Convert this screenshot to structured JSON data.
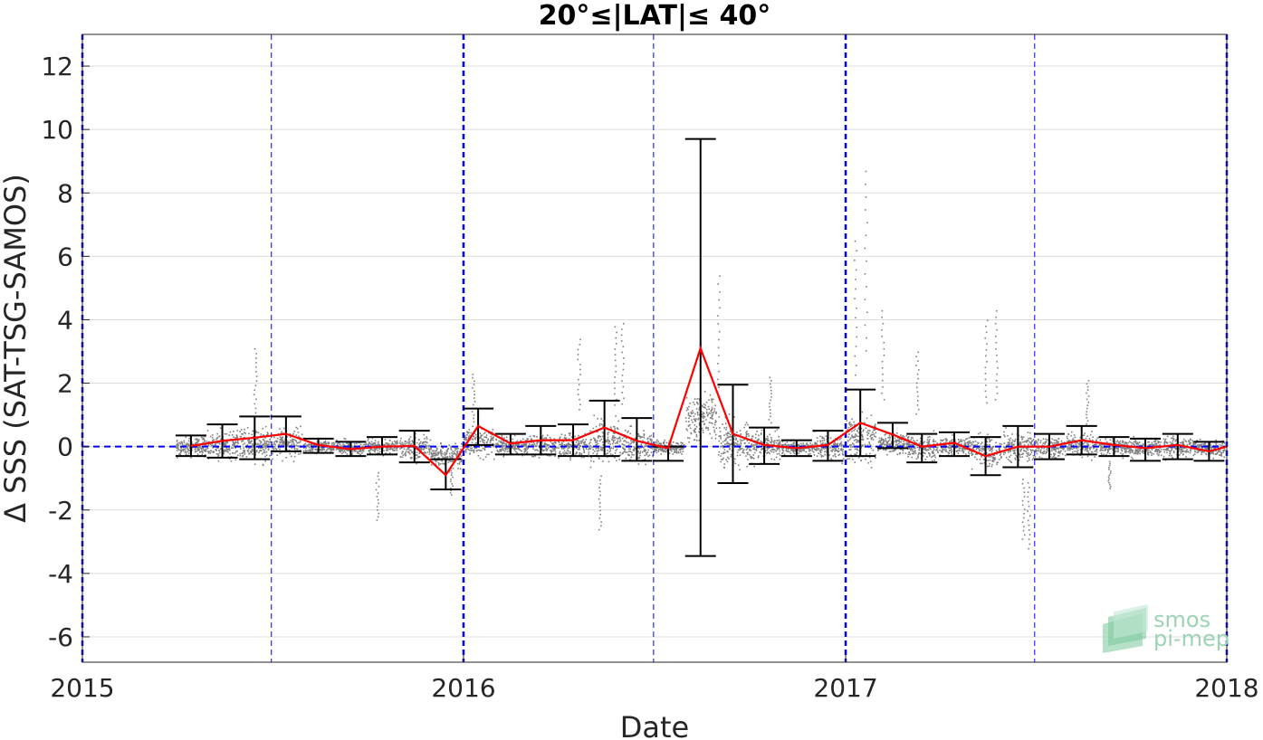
{
  "chart_data": {
    "type": "line",
    "title": "20°≤|LAT|≤ 40°",
    "xlabel": "Date",
    "ylabel": "Δ SSS (SAT-TSG-SAMOS)",
    "xlim": [
      "2015-01-01",
      "2018-01-01"
    ],
    "ylim": [
      -6.8,
      13
    ],
    "x_ticks": [
      "2015",
      "2016",
      "2017",
      "2018"
    ],
    "y_ticks": [
      -6,
      -4,
      -2,
      0,
      2,
      4,
      6,
      8,
      10,
      12
    ],
    "grid": true,
    "zero_line": 0,
    "year_lines": [
      "2015-01-01",
      "2016-01-01",
      "2017-01-01",
      "2018-01-01"
    ],
    "half_year_lines": [
      "2015-07-01",
      "2016-07-01",
      "2017-07-01"
    ],
    "colors": {
      "mean_line": "#ff0000",
      "error_bars": "#000000",
      "raw_points": "#808080",
      "year_lines": "#0000ff",
      "zero_line": "#0000ff",
      "grid": "#dcdcdc"
    },
    "series": [
      {
        "type": "errorbar",
        "x": [
          "2015-04-15",
          "2015-05-15",
          "2015-06-15",
          "2015-07-15",
          "2015-08-15",
          "2015-09-15",
          "2015-10-15",
          "2015-11-15",
          "2015-12-15",
          "2016-01-15",
          "2016-02-15",
          "2016-03-15",
          "2016-04-15",
          "2016-05-15",
          "2016-06-15",
          "2016-07-15",
          "2016-08-15",
          "2016-09-15",
          "2016-10-15",
          "2016-11-15",
          "2016-12-15",
          "2017-01-15",
          "2017-02-15",
          "2017-03-15",
          "2017-04-15",
          "2017-05-15",
          "2017-06-15",
          "2017-07-15",
          "2017-08-15",
          "2017-09-15",
          "2017-10-15",
          "2017-11-15",
          "2017-12-15"
        ],
        "mean": [
          0.02,
          0.18,
          0.28,
          0.4,
          0.05,
          -0.08,
          0.0,
          0.02,
          -0.9,
          0.65,
          0.1,
          0.2,
          0.2,
          0.6,
          0.18,
          -0.05,
          3.1,
          0.4,
          0.05,
          -0.05,
          0.05,
          0.75,
          0.38,
          0.0,
          0.12,
          -0.3,
          0.0,
          0.0,
          0.2,
          0.05,
          -0.05,
          0.05,
          -0.15
        ],
        "lower": [
          -0.3,
          -0.35,
          -0.4,
          -0.15,
          -0.2,
          -0.3,
          -0.25,
          -0.5,
          -1.35,
          0.05,
          -0.25,
          -0.25,
          -0.3,
          -0.3,
          -0.45,
          -0.45,
          -3.45,
          -1.15,
          -0.55,
          -0.3,
          -0.45,
          -0.3,
          -0.05,
          -0.5,
          -0.3,
          -0.9,
          -0.65,
          -0.4,
          -0.25,
          -0.3,
          -0.45,
          -0.4,
          -0.45
        ],
        "upper": [
          0.35,
          0.7,
          0.95,
          0.95,
          0.25,
          0.15,
          0.3,
          0.5,
          -0.4,
          1.2,
          0.4,
          0.65,
          0.7,
          1.45,
          0.9,
          0.0,
          9.7,
          1.95,
          0.6,
          0.2,
          0.5,
          1.8,
          0.75,
          0.4,
          0.45,
          0.3,
          0.65,
          0.4,
          0.65,
          0.3,
          0.25,
          0.4,
          0.15
        ]
      },
      {
        "type": "line",
        "x": [
          "2015-04-15",
          "2015-05-15",
          "2015-06-15",
          "2015-07-15",
          "2015-08-15",
          "2015-09-15",
          "2015-10-15",
          "2015-11-15",
          "2015-12-15",
          "2016-01-15",
          "2016-02-15",
          "2016-03-15",
          "2016-04-15",
          "2016-05-15",
          "2016-06-15",
          "2016-07-15",
          "2016-08-15",
          "2016-09-15",
          "2016-10-15",
          "2016-11-15",
          "2016-12-15",
          "2017-01-15",
          "2017-02-15",
          "2017-03-15",
          "2017-04-15",
          "2017-05-15",
          "2017-06-15",
          "2017-07-15",
          "2017-08-15",
          "2017-09-15",
          "2017-10-15",
          "2017-11-15",
          "2017-12-15",
          "2018-01-01"
        ],
        "values": [
          0.02,
          0.18,
          0.28,
          0.4,
          0.05,
          -0.08,
          0.0,
          0.02,
          -0.9,
          0.65,
          0.1,
          0.2,
          0.2,
          0.6,
          0.18,
          -0.05,
          3.1,
          0.4,
          0.05,
          -0.05,
          0.05,
          0.75,
          0.38,
          0.0,
          0.12,
          -0.3,
          0.0,
          0.0,
          0.2,
          0.05,
          -0.05,
          0.05,
          -0.15,
          0.0
        ]
      },
      {
        "type": "scatter",
        "x": [
          "2015-06-15",
          "2015-10-10",
          "2015-12-20",
          "2016-01-10",
          "2016-04-20",
          "2016-05-10",
          "2016-05-25",
          "2016-06-01",
          "2016-09-01",
          "2016-10-20",
          "2017-01-10",
          "2017-01-20",
          "2017-02-05",
          "2017-03-10",
          "2017-05-15",
          "2017-05-25",
          "2017-06-20",
          "2017-06-25",
          "2017-08-20",
          "2017-09-10"
        ],
        "values": [
          3.1,
          -2.3,
          -1.5,
          2.3,
          3.4,
          -2.6,
          3.8,
          3.9,
          5.4,
          2.2,
          6.5,
          8.7,
          4.3,
          3.0,
          4.0,
          4.3,
          -2.9,
          -3.2,
          2.1,
          -1.3
        ]
      }
    ]
  },
  "watermark": {
    "line1": "smos",
    "line2": "pi-mep"
  }
}
